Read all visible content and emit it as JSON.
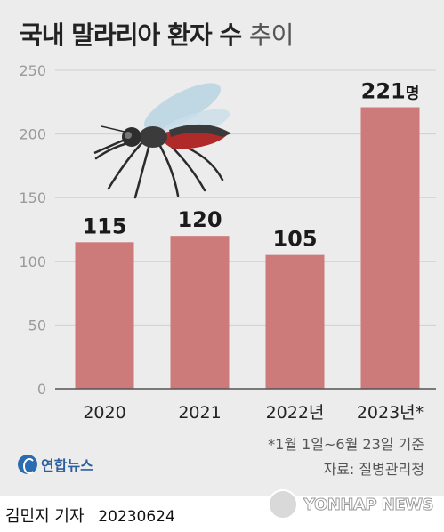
{
  "title": {
    "main": "국내 말라리아 환자 수",
    "suffix": "추이"
  },
  "chart_data": {
    "type": "bar",
    "categories": [
      "2020",
      "2021",
      "2022년",
      "2023년*"
    ],
    "values": [
      115,
      120,
      105,
      221
    ],
    "data_labels": [
      "115",
      "120",
      "105",
      "221"
    ],
    "last_label_unit": "명",
    "ylim": [
      0,
      250
    ],
    "yticks": [
      0,
      50,
      100,
      150,
      200,
      250
    ],
    "ytick_labels": [
      "0",
      "50",
      "100",
      "150",
      "200",
      "250"
    ],
    "grid": true,
    "bar_color": "#cc7a7a"
  },
  "footnote": "*1월 1일~6월 23일 기준",
  "source": "자료: 질병관리청",
  "logo_text": "연합뉴스",
  "reporter": "김민지 기자",
  "date": "20230624",
  "watermark": "YONHAP NEWS",
  "illustration": "mosquito-icon"
}
